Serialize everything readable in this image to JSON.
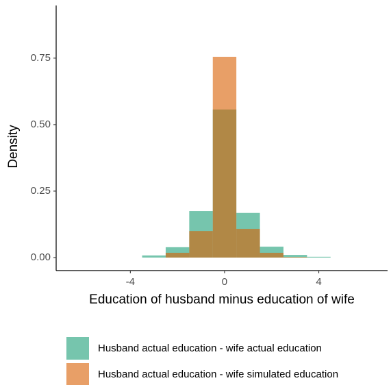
{
  "chart_data": {
    "type": "histogram",
    "x_label": "Education of husband minus education of wife",
    "y_label": "Density",
    "bins": [
      -3.5,
      -2.5,
      -1.5,
      -0.5,
      0.5,
      1.5,
      2.5,
      3.5,
      4.5
    ],
    "series": [
      {
        "name": "Husband actual education - wife actual education",
        "color": "#1b9e77",
        "opacity": 0.6,
        "values": [
          0.008,
          0.039,
          0.175,
          0.557,
          0.168,
          0.041,
          0.01,
          0.003
        ]
      },
      {
        "name": "Husband actual education - wife simulated education",
        "color": "#d95f02",
        "opacity": 0.6,
        "values": [
          0,
          0.018,
          0.1,
          0.755,
          0.108,
          0.018,
          0.002,
          0
        ]
      }
    ],
    "xlim": [
      -7.15,
      6.92
    ],
    "ylim": [
      -0.049,
      0.948
    ],
    "xticks": [
      -4,
      0,
      4
    ],
    "yticks": [
      {
        "value": 0,
        "label": "0.00"
      },
      {
        "value": 0.25,
        "label": "0.25"
      },
      {
        "value": 0.5,
        "label": "0.50"
      },
      {
        "value": 0.75,
        "label": "0.75"
      }
    ],
    "legend": "bottom",
    "grid": false
  }
}
